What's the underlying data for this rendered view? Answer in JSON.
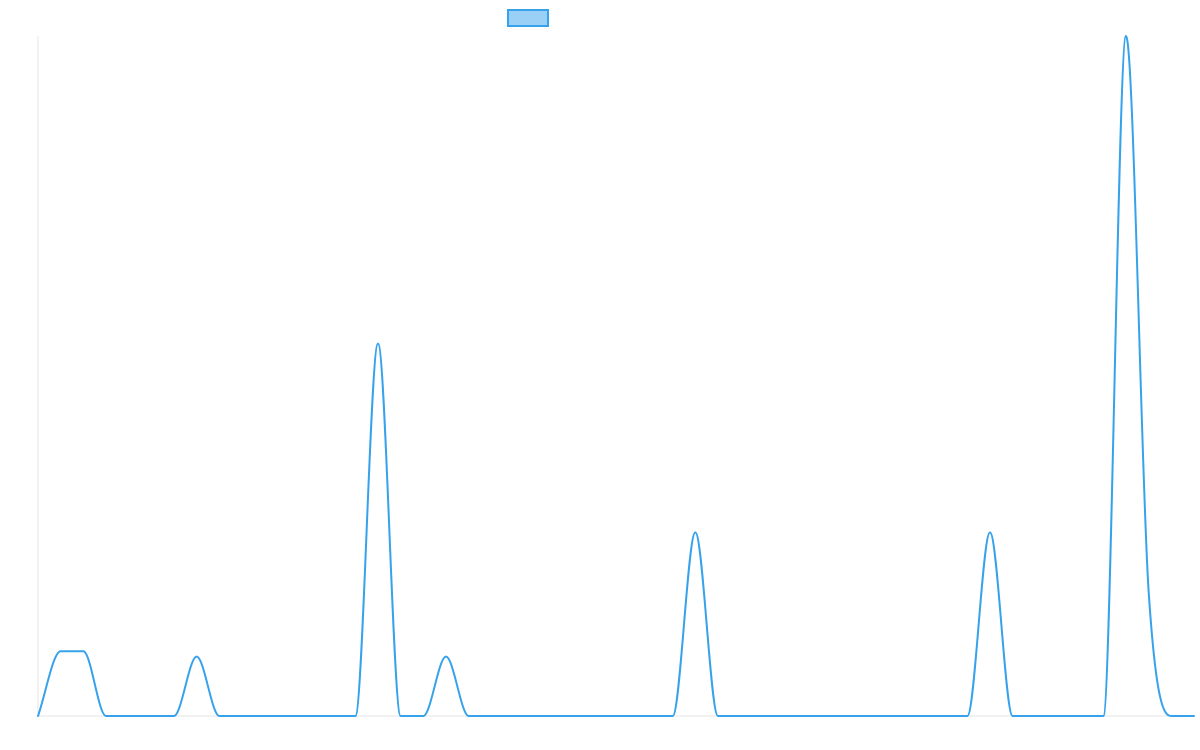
{
  "chart_data": {
    "type": "line",
    "title": "",
    "xlabel": "",
    "ylabel": "",
    "x": [
      0,
      1,
      2,
      3,
      4,
      5,
      6,
      7,
      8,
      9,
      10,
      11,
      12,
      13,
      14,
      15,
      16,
      17,
      18,
      19,
      20,
      21,
      22,
      23,
      24,
      25,
      26,
      27,
      28,
      29,
      30,
      31,
      32,
      33,
      34,
      35,
      36,
      37,
      38,
      39,
      40,
      41,
      42,
      43,
      44,
      45,
      46,
      47,
      48,
      49,
      50,
      51
    ],
    "series": [
      {
        "color": "#36a2eb",
        "fill": "#9ad0f5",
        "values": [
          0,
          0.6,
          0.6,
          0,
          0,
          0,
          0,
          0.55,
          0,
          0,
          0,
          0,
          0,
          0,
          0,
          3.45,
          0,
          0,
          0.55,
          0,
          0,
          0,
          0,
          0,
          0,
          0,
          0,
          0,
          0,
          1.7,
          0,
          0,
          0,
          0,
          0,
          0,
          0,
          0,
          0,
          0,
          0,
          0,
          1.7,
          0,
          0,
          0,
          0,
          0,
          6.3,
          1.15,
          0,
          0
        ]
      }
    ],
    "ylim": [
      0,
      6.3
    ],
    "grid": false,
    "legend": "top-center"
  }
}
